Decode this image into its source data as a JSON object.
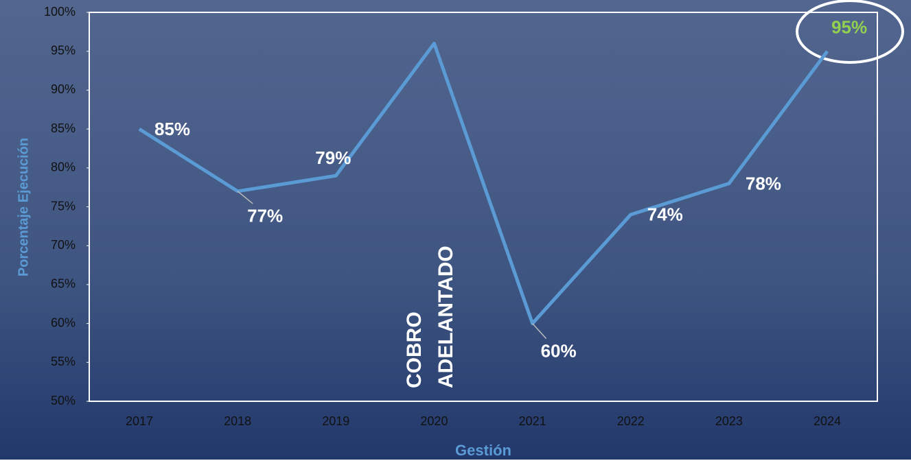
{
  "chart_data": {
    "type": "line",
    "y_label": "Porcentaje Ejecución",
    "x_label": "Gestión",
    "categories": [
      "2017",
      "2018",
      "2019",
      "2020",
      "2021",
      "2022",
      "2023",
      "2024"
    ],
    "series": [
      {
        "name": "Porcentaje Ejecución",
        "color": "#5b9bd5",
        "values": [
          85,
          77,
          79,
          96,
          60,
          74,
          78,
          95
        ],
        "value_labels": [
          "85%",
          "77%",
          "79%",
          null,
          "60%",
          "74%",
          "78%",
          "95%"
        ]
      }
    ],
    "highlight_color": "#92d050",
    "annotations": [
      "COBRO",
      "ADELANTADO"
    ],
    "ylim": [
      50,
      100
    ],
    "yticks": [
      {
        "value": 50,
        "label": "50%"
      },
      {
        "value": 55,
        "label": "55%"
      },
      {
        "value": 60,
        "label": "60%"
      },
      {
        "value": 65,
        "label": "65%"
      },
      {
        "value": 70,
        "label": "70%"
      },
      {
        "value": 75,
        "label": "75%"
      },
      {
        "value": 80,
        "label": "80%"
      },
      {
        "value": 85,
        "label": "85%"
      },
      {
        "value": 90,
        "label": "90%"
      },
      {
        "value": 95,
        "label": "95%"
      },
      {
        "value": 100,
        "label": "100%"
      }
    ]
  }
}
